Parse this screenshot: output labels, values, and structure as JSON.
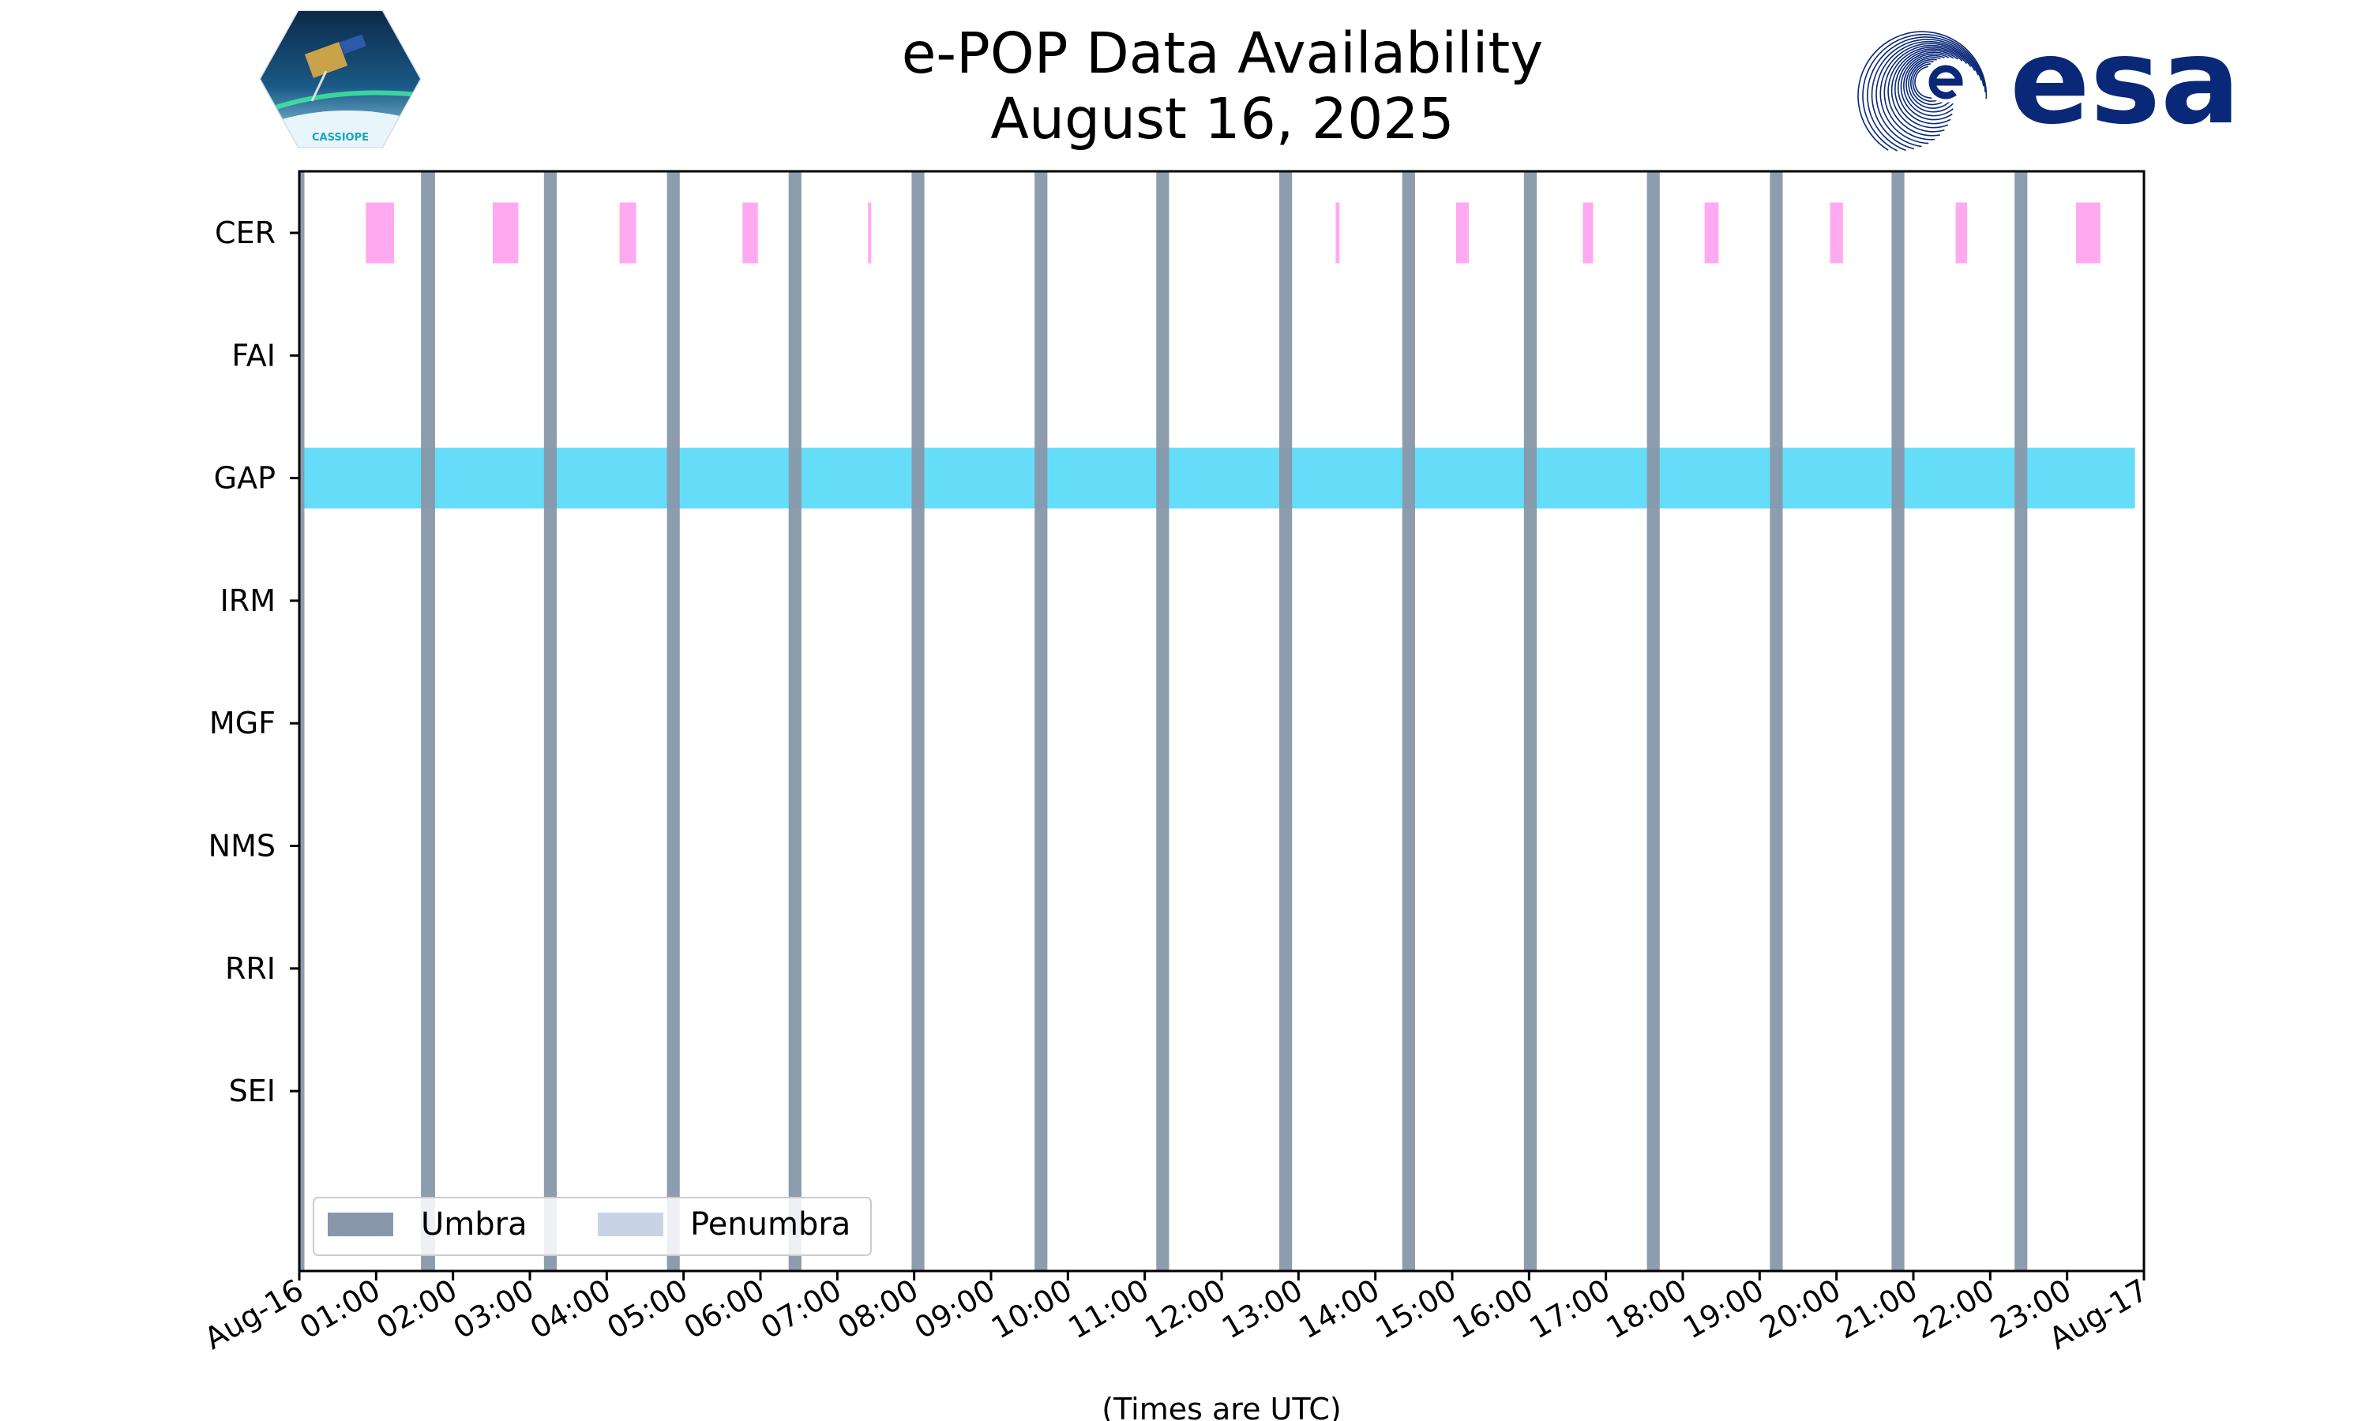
{
  "chart_data": {
    "type": "timeline",
    "title_line1": "e-POP Data Availability",
    "title_line2": "August 16, 2025",
    "xlabel": "(Times are UTC)",
    "x_range": [
      "2025-08-16 00:00",
      "2025-08-17 00:00"
    ],
    "x_tick_labels": [
      "Aug-16",
      "01:00",
      "02:00",
      "03:00",
      "04:00",
      "05:00",
      "06:00",
      "07:00",
      "08:00",
      "09:00",
      "10:00",
      "11:00",
      "12:00",
      "13:00",
      "14:00",
      "15:00",
      "16:00",
      "17:00",
      "18:00",
      "19:00",
      "20:00",
      "21:00",
      "22:00",
      "23:00",
      "Aug-17"
    ],
    "instruments": [
      "CER",
      "FAI",
      "GAP",
      "IRM",
      "MGF",
      "NMS",
      "RRI",
      "SEI"
    ],
    "grid": false,
    "legend_position": "lower-left",
    "legend": [
      {
        "label": "Umbra",
        "color": "#8898aa"
      },
      {
        "label": "Penumbra",
        "color": "#c8d4e4"
      }
    ],
    "umbra_intervals": [
      [
        "00:00",
        "00:04"
      ],
      [
        "01:35",
        "01:46"
      ],
      [
        "03:11",
        "03:21"
      ],
      [
        "04:47",
        "04:57"
      ],
      [
        "06:22",
        "06:32"
      ],
      [
        "07:58",
        "08:08"
      ],
      [
        "09:34",
        "09:44"
      ],
      [
        "11:09",
        "11:19"
      ],
      [
        "12:45",
        "12:55"
      ],
      [
        "14:21",
        "14:31"
      ],
      [
        "15:56",
        "16:06"
      ],
      [
        "17:32",
        "17:42"
      ],
      [
        "19:08",
        "19:18"
      ],
      [
        "20:43",
        "20:53"
      ],
      [
        "22:19",
        "22:29"
      ]
    ],
    "series": [
      {
        "name": "CER",
        "color": "#ffaaf0",
        "intervals": [
          [
            "00:52",
            "01:14"
          ],
          [
            "02:31",
            "02:51"
          ],
          [
            "04:10",
            "04:23"
          ],
          [
            "05:46",
            "05:58"
          ],
          [
            "07:24",
            "07:26"
          ],
          [
            "13:29",
            "13:32"
          ],
          [
            "15:03",
            "15:13"
          ],
          [
            "16:42",
            "16:50"
          ],
          [
            "18:17",
            "18:28"
          ],
          [
            "19:55",
            "20:05"
          ],
          [
            "21:33",
            "21:42"
          ],
          [
            "23:07",
            "23:26"
          ]
        ]
      },
      {
        "name": "FAI",
        "color": "#ffaaf0",
        "intervals": []
      },
      {
        "name": "GAP",
        "color": "#66ddf8",
        "intervals": [
          [
            "00:00",
            "23:53"
          ]
        ]
      },
      {
        "name": "IRM",
        "color": "#66ddf8",
        "intervals": []
      },
      {
        "name": "MGF",
        "color": "#66ddf8",
        "intervals": []
      },
      {
        "name": "NMS",
        "color": "#66ddf8",
        "intervals": []
      },
      {
        "name": "RRI",
        "color": "#66ddf8",
        "intervals": []
      },
      {
        "name": "SEI",
        "color": "#66ddf8",
        "intervals": []
      }
    ]
  },
  "logos": {
    "cassiope_text": "CASSIOPE",
    "esa_text": "esa"
  },
  "colors": {
    "esa_blue": "#0a2878",
    "cassiope_teal": "#1aa6b8"
  }
}
